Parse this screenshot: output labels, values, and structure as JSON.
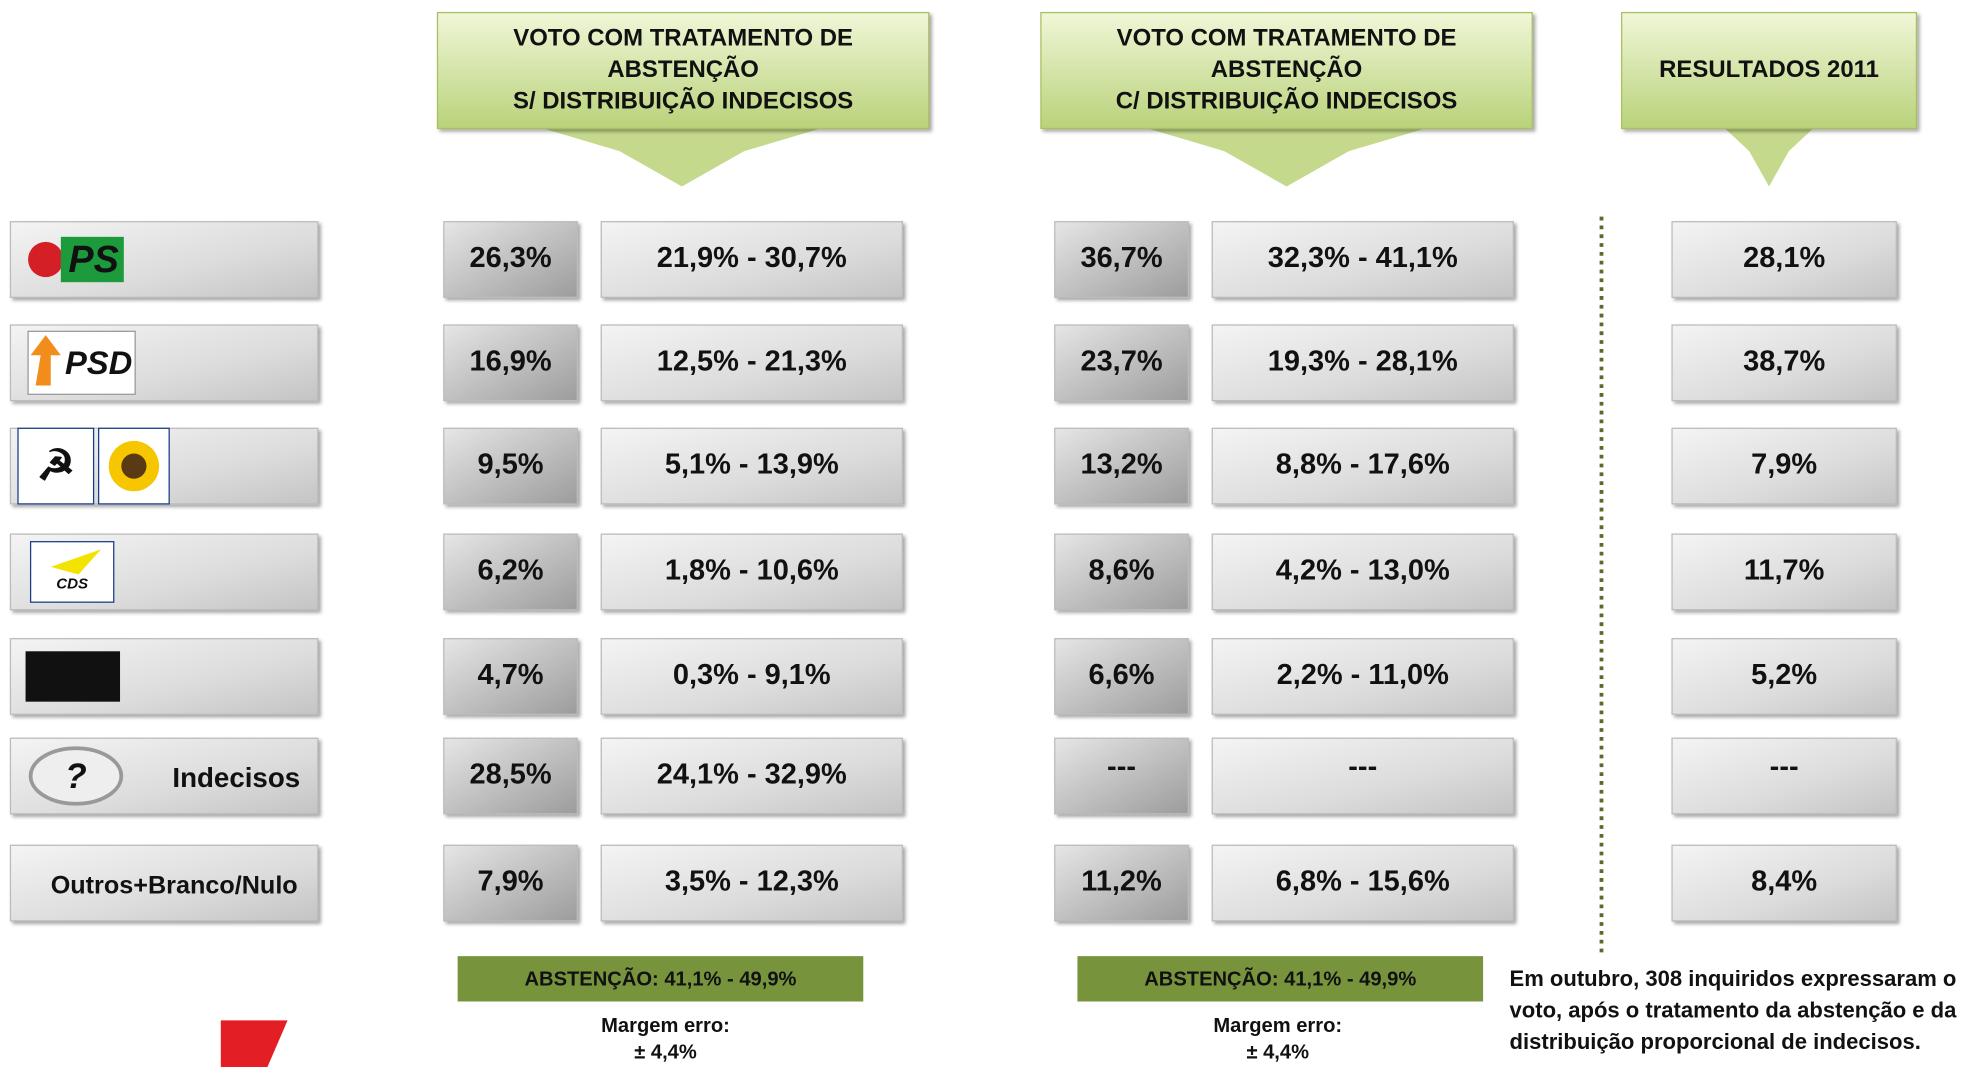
{
  "headers": [
    {
      "lines": [
        "VOTO  COM TRATAMENTO DE",
        "ABSTENÇÃO",
        "S/ DISTRIBUIÇÃO INDECISOS"
      ]
    },
    {
      "lines": [
        "VOTO  COM TRATAMENTO DE",
        "ABSTENÇÃO",
        "C/ DISTRIBUIÇÃO INDECISOS"
      ]
    },
    {
      "lines": [
        "RESULTADOS 2011"
      ]
    }
  ],
  "table": {
    "rows": [
      {
        "logo": "PS",
        "share_a": "26,3%",
        "range_a": "21,9% - 30,7%",
        "share_b": "36,7%",
        "range_b": "32,3% - 41,1%",
        "result_2011": "28,1%"
      },
      {
        "logo": "PSD",
        "share_a": "16,9%",
        "range_a": "12,5% - 21,3%",
        "share_b": "23,7%",
        "range_b": "19,3% - 28,1%",
        "result_2011": "38,7%"
      },
      {
        "share_a": "9,5%",
        "range_a": "5,1% - 13,9%",
        "share_b": "13,2%",
        "range_b": "8,8% - 17,6%",
        "result_2011": "7,9%"
      },
      {
        "logo": "CDS",
        "share_a": "6,2%",
        "range_a": "1,8% - 10,6%",
        "share_b": "8,6%",
        "range_b": "4,2% - 13,0%",
        "result_2011": "11,7%"
      },
      {
        "share_a": "4,7%",
        "range_a": "0,3% - 9,1%",
        "share_b": "6,6%",
        "range_b": "2,2% - 11,0%",
        "result_2011": "5,2%"
      },
      {
        "logo": "?",
        "label": "Indecisos",
        "share_a": "28,5%",
        "range_a": "24,1% - 32,9%",
        "share_b": "---",
        "range_b": "---",
        "result_2011": "---"
      },
      {
        "label": "Outros+Branco/Nulo",
        "share_a": "7,9%",
        "range_a": "3,5% - 12,3%",
        "share_b": "11,2%",
        "range_b": "6,8% - 15,6%",
        "result_2011": "8,4%"
      }
    ]
  },
  "footer": {
    "columns": [
      {
        "abstention": "ABSTENÇÃO: 41,1% - 49,9%",
        "margin_label": "Margem erro:",
        "margin_value": "± 4,4%"
      },
      {
        "abstention": "ABSTENÇÃO: 41,1% - 49,9%",
        "margin_label": "Margem erro:",
        "margin_value": "± 4,4%"
      }
    ],
    "note": [
      "Em outubro, 308 inquiridos expressaram o",
      "voto, após o tratamento da abstenção e da",
      "distribuição proporcional de indecisos."
    ]
  }
}
